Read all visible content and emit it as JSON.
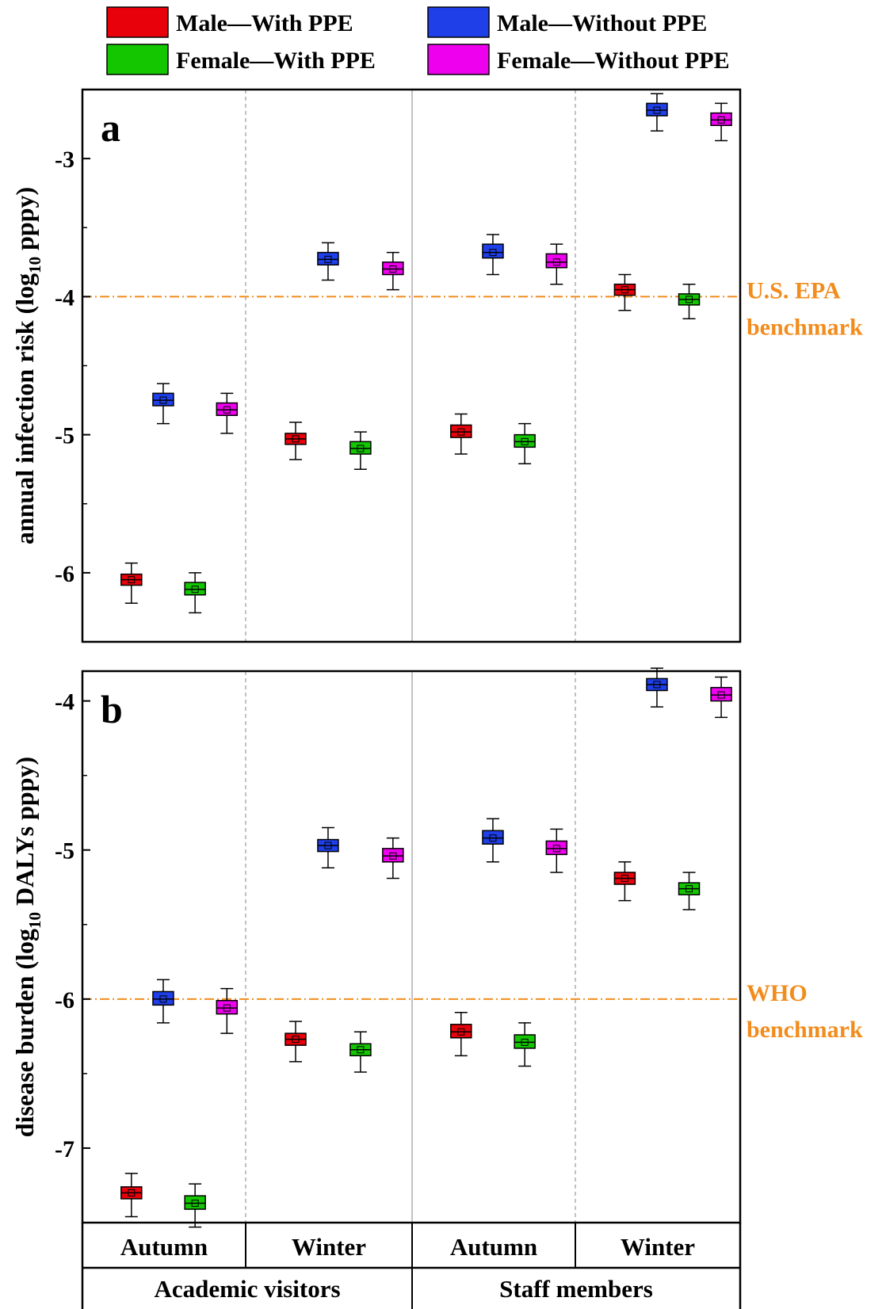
{
  "legend": [
    {
      "label": "Male—With PPE",
      "color": "#e8000b"
    },
    {
      "label": "Male—Without PPE",
      "color": "#1f3fe8"
    },
    {
      "label": "Female—With PPE",
      "color": "#13c600"
    },
    {
      "label": "Female—Without PPE",
      "color": "#ee00ee"
    }
  ],
  "groups": {
    "seasons": [
      "Autumn",
      "Winter",
      "Autumn",
      "Winter"
    ],
    "populations": [
      "Academic visitors",
      "Staff members"
    ]
  },
  "chart_data": [
    {
      "type": "box",
      "panel_label": "a",
      "ylabel_pre": "annual infection risk  (log",
      "ylabel_sub": "10",
      "ylabel_post": " pppy)",
      "ylim": [
        -6.5,
        -2.5
      ],
      "yticks": [
        -6,
        -5,
        -4,
        -3
      ],
      "benchmark": {
        "value": -4,
        "label_lines": [
          "U.S. EPA",
          "benchmark"
        ],
        "color": "#f28c1c"
      },
      "boxes": [
        {
          "series": "Male—With PPE",
          "population": "Academic visitors",
          "season": "Autumn",
          "median": -6.05,
          "q1": -6.09,
          "q3": -6.01,
          "whisker_low": -6.22,
          "whisker_high": -5.93
        },
        {
          "series": "Male—Without PPE",
          "population": "Academic visitors",
          "season": "Autumn",
          "median": -4.75,
          "q1": -4.79,
          "q3": -4.7,
          "whisker_low": -4.92,
          "whisker_high": -4.63
        },
        {
          "series": "Female—With PPE",
          "population": "Academic visitors",
          "season": "Autumn",
          "median": -6.12,
          "q1": -6.16,
          "q3": -6.07,
          "whisker_low": -6.29,
          "whisker_high": -6.0
        },
        {
          "series": "Female—Without PPE",
          "population": "Academic visitors",
          "season": "Autumn",
          "median": -4.82,
          "q1": -4.86,
          "q3": -4.77,
          "whisker_low": -4.99,
          "whisker_high": -4.7
        },
        {
          "series": "Male—With PPE",
          "population": "Academic visitors",
          "season": "Winter",
          "median": -5.03,
          "q1": -5.07,
          "q3": -4.99,
          "whisker_low": -5.18,
          "whisker_high": -4.91
        },
        {
          "series": "Male—Without PPE",
          "population": "Academic visitors",
          "season": "Winter",
          "median": -3.73,
          "q1": -3.77,
          "q3": -3.68,
          "whisker_low": -3.88,
          "whisker_high": -3.61
        },
        {
          "series": "Female—With PPE",
          "population": "Academic visitors",
          "season": "Winter",
          "median": -5.1,
          "q1": -5.14,
          "q3": -5.05,
          "whisker_low": -5.25,
          "whisker_high": -4.98
        },
        {
          "series": "Female—Without PPE",
          "population": "Academic visitors",
          "season": "Winter",
          "median": -3.8,
          "q1": -3.84,
          "q3": -3.75,
          "whisker_low": -3.95,
          "whisker_high": -3.68
        },
        {
          "series": "Male—With PPE",
          "population": "Staff members",
          "season": "Autumn",
          "median": -4.98,
          "q1": -5.02,
          "q3": -4.93,
          "whisker_low": -5.14,
          "whisker_high": -4.85
        },
        {
          "series": "Male—Without PPE",
          "population": "Staff members",
          "season": "Autumn",
          "median": -3.68,
          "q1": -3.72,
          "q3": -3.62,
          "whisker_low": -3.84,
          "whisker_high": -3.55
        },
        {
          "series": "Female—With PPE",
          "population": "Staff members",
          "season": "Autumn",
          "median": -5.05,
          "q1": -5.09,
          "q3": -5.0,
          "whisker_low": -5.21,
          "whisker_high": -4.92
        },
        {
          "series": "Female—Without PPE",
          "population": "Staff members",
          "season": "Autumn",
          "median": -3.75,
          "q1": -3.79,
          "q3": -3.69,
          "whisker_low": -3.91,
          "whisker_high": -3.62
        },
        {
          "series": "Male—With PPE",
          "population": "Staff members",
          "season": "Winter",
          "median": -3.95,
          "q1": -3.99,
          "q3": -3.91,
          "whisker_low": -4.1,
          "whisker_high": -3.84
        },
        {
          "series": "Male—Without PPE",
          "population": "Staff members",
          "season": "Winter",
          "median": -2.65,
          "q1": -2.69,
          "q3": -2.6,
          "whisker_low": -2.8,
          "whisker_high": -2.53
        },
        {
          "series": "Female—With PPE",
          "population": "Staff members",
          "season": "Winter",
          "median": -4.02,
          "q1": -4.06,
          "q3": -3.98,
          "whisker_low": -4.16,
          "whisker_high": -3.91
        },
        {
          "series": "Female—Without PPE",
          "population": "Staff members",
          "season": "Winter",
          "median": -2.72,
          "q1": -2.76,
          "q3": -2.67,
          "whisker_low": -2.87,
          "whisker_high": -2.6
        }
      ]
    },
    {
      "type": "box",
      "panel_label": "b",
      "ylabel_pre": "disease burden (log",
      "ylabel_sub": "10",
      "ylabel_post": " DALYs pppy)",
      "ylim": [
        -7.5,
        -3.8
      ],
      "yticks": [
        -7,
        -6,
        -5,
        -4
      ],
      "benchmark": {
        "value": -6,
        "label_lines": [
          "WHO",
          "benchmark"
        ],
        "color": "#f28c1c"
      },
      "boxes": [
        {
          "series": "Male—With PPE",
          "population": "Academic visitors",
          "season": "Autumn",
          "median": -7.3,
          "q1": -7.34,
          "q3": -7.26,
          "whisker_low": -7.46,
          "whisker_high": -7.17
        },
        {
          "series": "Male—Without PPE",
          "population": "Academic visitors",
          "season": "Autumn",
          "median": -6.0,
          "q1": -6.04,
          "q3": -5.95,
          "whisker_low": -6.16,
          "whisker_high": -5.87
        },
        {
          "series": "Female—With PPE",
          "population": "Academic visitors",
          "season": "Autumn",
          "median": -7.37,
          "q1": -7.41,
          "q3": -7.32,
          "whisker_low": -7.53,
          "whisker_high": -7.24
        },
        {
          "series": "Female—Without PPE",
          "population": "Academic visitors",
          "season": "Autumn",
          "median": -6.06,
          "q1": -6.1,
          "q3": -6.01,
          "whisker_low": -6.23,
          "whisker_high": -5.93
        },
        {
          "series": "Male—With PPE",
          "population": "Academic visitors",
          "season": "Winter",
          "median": -6.27,
          "q1": -6.31,
          "q3": -6.23,
          "whisker_low": -6.42,
          "whisker_high": -6.15
        },
        {
          "series": "Male—Without PPE",
          "population": "Academic visitors",
          "season": "Winter",
          "median": -4.97,
          "q1": -5.01,
          "q3": -4.93,
          "whisker_low": -5.12,
          "whisker_high": -4.85
        },
        {
          "series": "Female—With PPE",
          "population": "Academic visitors",
          "season": "Winter",
          "median": -6.34,
          "q1": -6.38,
          "q3": -6.3,
          "whisker_low": -6.49,
          "whisker_high": -6.22
        },
        {
          "series": "Female—Without PPE",
          "population": "Academic visitors",
          "season": "Winter",
          "median": -5.04,
          "q1": -5.08,
          "q3": -4.99,
          "whisker_low": -5.19,
          "whisker_high": -4.92
        },
        {
          "series": "Male—With PPE",
          "population": "Staff members",
          "season": "Autumn",
          "median": -6.22,
          "q1": -6.26,
          "q3": -6.17,
          "whisker_low": -6.38,
          "whisker_high": -6.09
        },
        {
          "series": "Male—Without PPE",
          "population": "Staff members",
          "season": "Autumn",
          "median": -4.92,
          "q1": -4.96,
          "q3": -4.87,
          "whisker_low": -5.08,
          "whisker_high": -4.79
        },
        {
          "series": "Female—With PPE",
          "population": "Staff members",
          "season": "Autumn",
          "median": -6.29,
          "q1": -6.33,
          "q3": -6.24,
          "whisker_low": -6.45,
          "whisker_high": -6.16
        },
        {
          "series": "Female—Without PPE",
          "population": "Staff members",
          "season": "Autumn",
          "median": -4.99,
          "q1": -5.03,
          "q3": -4.94,
          "whisker_low": -5.15,
          "whisker_high": -4.86
        },
        {
          "series": "Male—With PPE",
          "population": "Staff members",
          "season": "Winter",
          "median": -5.19,
          "q1": -5.23,
          "q3": -5.15,
          "whisker_low": -5.34,
          "whisker_high": -5.08
        },
        {
          "series": "Male—Without PPE",
          "population": "Staff members",
          "season": "Winter",
          "median": -3.89,
          "q1": -3.93,
          "q3": -3.85,
          "whisker_low": -4.04,
          "whisker_high": -3.78
        },
        {
          "series": "Female—With PPE",
          "population": "Staff members",
          "season": "Winter",
          "median": -5.26,
          "q1": -5.3,
          "q3": -5.22,
          "whisker_low": -5.4,
          "whisker_high": -5.15
        },
        {
          "series": "Female—Without PPE",
          "population": "Staff members",
          "season": "Winter",
          "median": -3.96,
          "q1": -4.0,
          "q3": -3.91,
          "whisker_low": -4.11,
          "whisker_high": -3.84
        }
      ]
    }
  ]
}
